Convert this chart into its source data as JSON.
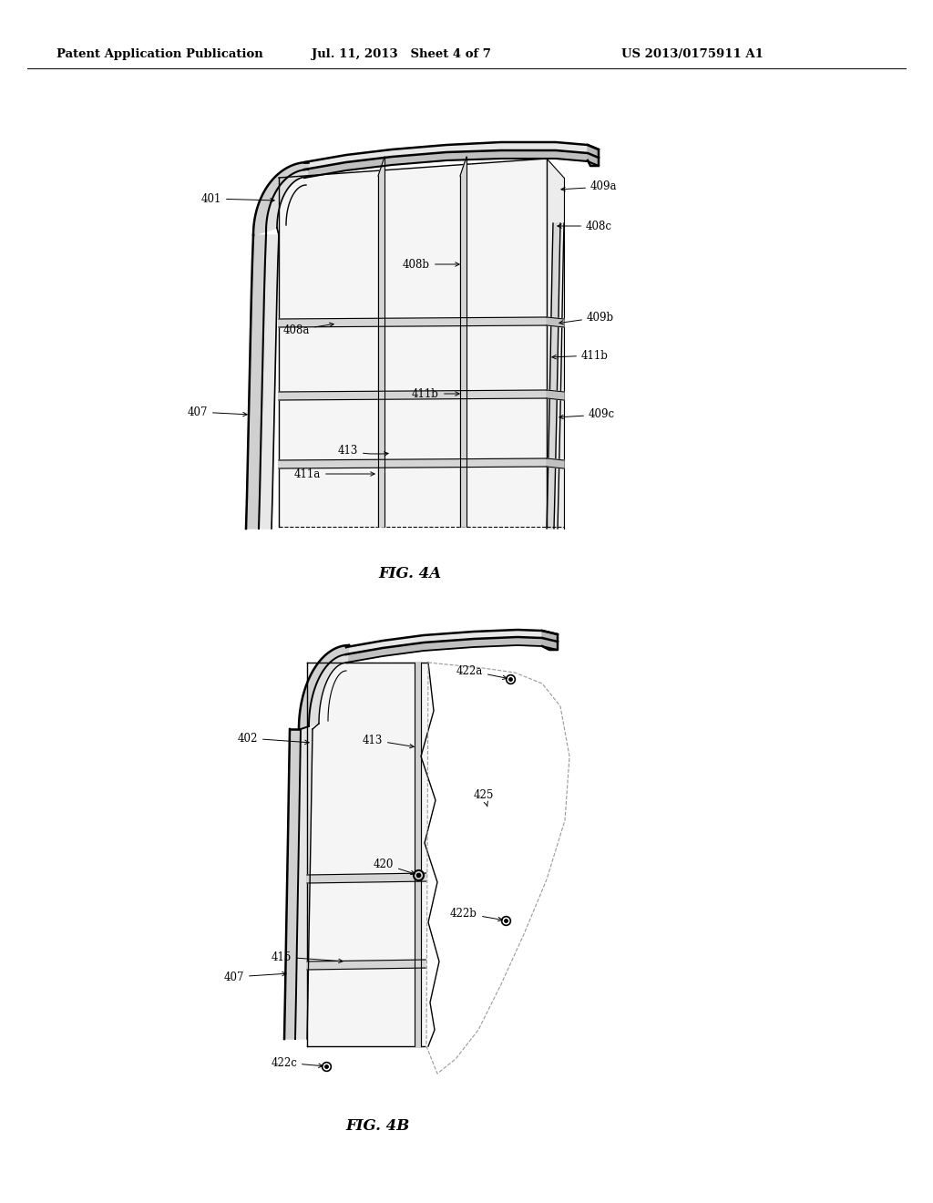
{
  "bg_color": "#ffffff",
  "header_text": "Patent Application Publication",
  "header_date": "Jul. 11, 2013   Sheet 4 of 7",
  "header_patent": "US 2013/0175911 A1",
  "fig4a_label": "FIG. 4A",
  "fig4b_label": "FIG. 4B",
  "line_color": "#000000",
  "gray_fill": "#d8d8d8",
  "dark_fill": "#aaaaaa",
  "light_fill": "#eeeeee"
}
